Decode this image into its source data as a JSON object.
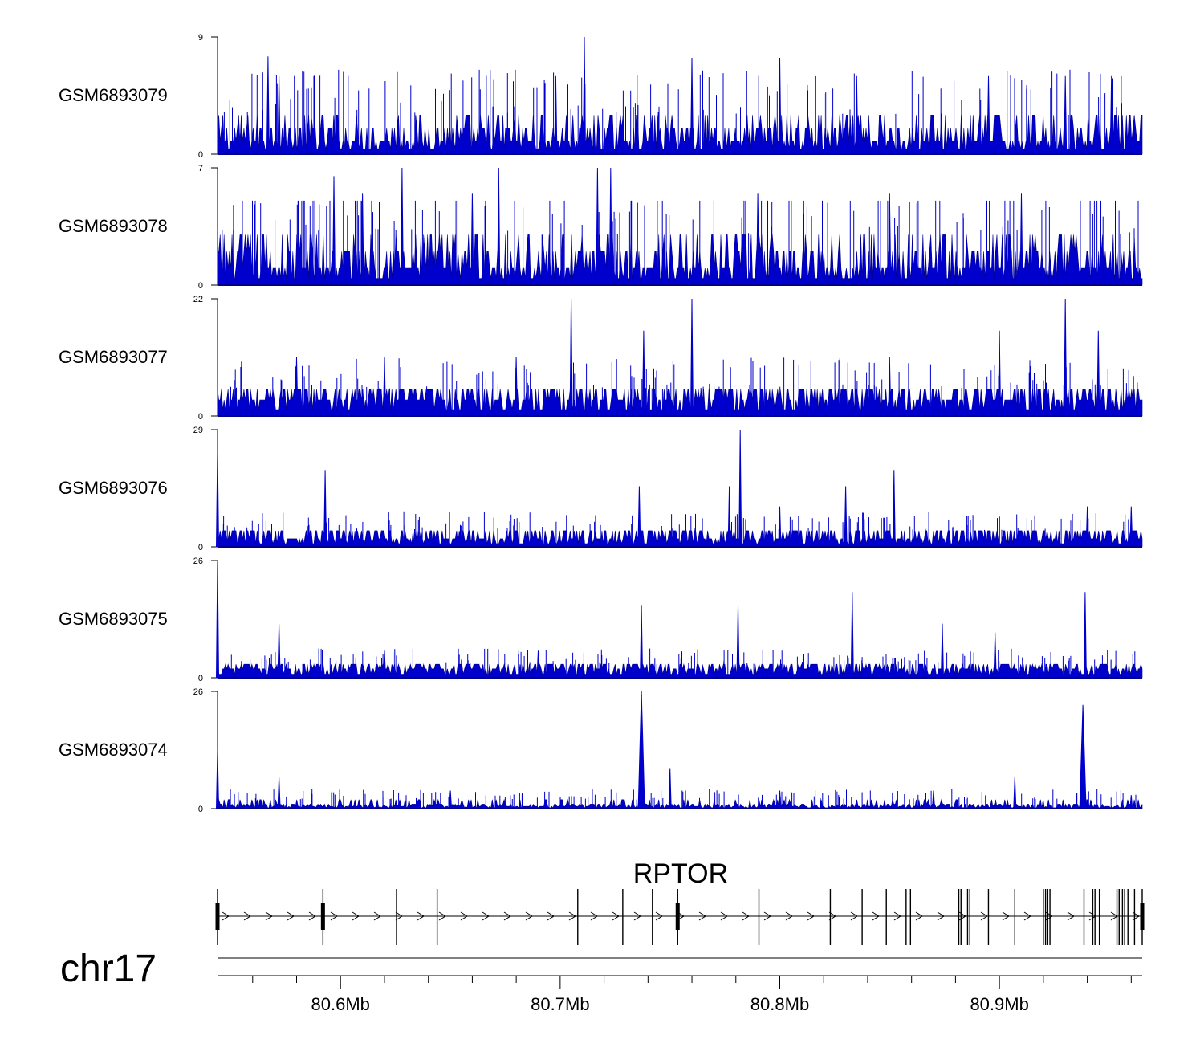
{
  "chart_data": {
    "type": "area",
    "x_axis": {
      "unit": "Mb",
      "range": [
        80.544,
        80.965
      ],
      "major_ticks": [
        80.6,
        80.7,
        80.8,
        80.9
      ],
      "major_labels": [
        "80.6Mb",
        "80.7Mb",
        "80.8Mb",
        "80.9Mb"
      ],
      "minor_ticks": [
        80.56,
        80.58,
        80.62,
        80.64,
        80.66,
        80.68,
        80.72,
        80.74,
        80.76,
        80.78,
        80.82,
        80.84,
        80.86,
        80.88,
        80.92,
        80.94,
        80.96
      ]
    },
    "chromosome": "chr17",
    "tracks": [
      {
        "name": "GSM6893079",
        "ymax": 9,
        "ymin": 0,
        "color": "#0000cd",
        "baseline_levels": [
          1,
          2,
          3
        ],
        "peaks": [
          {
            "x": 80.567,
            "y": 7.5
          },
          {
            "x": 80.572,
            "y": 6
          },
          {
            "x": 80.711,
            "y": 9
          },
          {
            "x": 80.76,
            "y": 7.4
          },
          {
            "x": 80.8,
            "y": 7.4
          },
          {
            "x": 80.698,
            "y": 6
          },
          {
            "x": 80.835,
            "y": 6
          },
          {
            "x": 80.895,
            "y": 6
          },
          {
            "x": 80.93,
            "y": 6
          },
          {
            "x": 80.951,
            "y": 6
          }
        ]
      },
      {
        "name": "GSM6893078",
        "ymax": 7,
        "ymin": 0,
        "color": "#0000cd",
        "baseline_levels": [
          1,
          2,
          3
        ],
        "peaks": [
          {
            "x": 80.597,
            "y": 6.5
          },
          {
            "x": 80.628,
            "y": 7
          },
          {
            "x": 80.672,
            "y": 7
          },
          {
            "x": 80.717,
            "y": 7
          },
          {
            "x": 80.723,
            "y": 7
          },
          {
            "x": 80.61,
            "y": 5.5
          },
          {
            "x": 80.66,
            "y": 5.5
          },
          {
            "x": 80.79,
            "y": 5.5
          },
          {
            "x": 80.85,
            "y": 5.5
          },
          {
            "x": 80.91,
            "y": 5.5
          }
        ]
      },
      {
        "name": "GSM6893077",
        "ymax": 22,
        "ymin": 0,
        "color": "#0000cd",
        "baseline_levels": [
          3,
          5
        ],
        "peaks": [
          {
            "x": 80.705,
            "y": 22
          },
          {
            "x": 80.76,
            "y": 22
          },
          {
            "x": 80.738,
            "y": 16
          },
          {
            "x": 80.93,
            "y": 22
          },
          {
            "x": 80.9,
            "y": 16
          },
          {
            "x": 80.945,
            "y": 16
          },
          {
            "x": 80.62,
            "y": 11
          },
          {
            "x": 80.58,
            "y": 11
          },
          {
            "x": 80.68,
            "y": 11
          },
          {
            "x": 80.85,
            "y": 11
          }
        ]
      },
      {
        "name": "GSM6893076",
        "ymax": 29,
        "ymin": 0,
        "color": "#0000cd",
        "baseline_levels": [
          2,
          4
        ],
        "peaks": [
          {
            "x": 80.544,
            "y": 24
          },
          {
            "x": 80.593,
            "y": 19
          },
          {
            "x": 80.782,
            "y": 29
          },
          {
            "x": 80.852,
            "y": 19
          },
          {
            "x": 80.736,
            "y": 15
          },
          {
            "x": 80.777,
            "y": 15
          },
          {
            "x": 80.83,
            "y": 15
          },
          {
            "x": 80.8,
            "y": 10
          },
          {
            "x": 80.94,
            "y": 10
          },
          {
            "x": 80.96,
            "y": 10
          }
        ]
      },
      {
        "name": "GSM6893075",
        "ymax": 26,
        "ymin": 0,
        "color": "#0000cd",
        "baseline_levels": [
          2,
          3
        ],
        "peaks": [
          {
            "x": 80.544,
            "y": 26
          },
          {
            "x": 80.737,
            "y": 16
          },
          {
            "x": 80.781,
            "y": 16
          },
          {
            "x": 80.833,
            "y": 19
          },
          {
            "x": 80.939,
            "y": 19
          },
          {
            "x": 80.572,
            "y": 12
          },
          {
            "x": 80.874,
            "y": 12
          },
          {
            "x": 80.898,
            "y": 10
          },
          {
            "x": 80.62,
            "y": 6
          },
          {
            "x": 80.69,
            "y": 6
          }
        ]
      },
      {
        "name": "GSM6893074",
        "ymax": 26,
        "ymin": 0,
        "color": "#0000cd",
        "baseline_levels": [
          0.5,
          1,
          2
        ],
        "peaks": [
          {
            "x": 80.544,
            "y": 13
          },
          {
            "x": 80.737,
            "y": 26
          },
          {
            "x": 80.938,
            "y": 23
          },
          {
            "x": 80.75,
            "y": 9
          },
          {
            "x": 80.907,
            "y": 7
          },
          {
            "x": 80.572,
            "y": 7
          },
          {
            "x": 80.65,
            "y": 4
          },
          {
            "x": 80.8,
            "y": 4
          },
          {
            "x": 80.87,
            "y": 4
          },
          {
            "x": 80.96,
            "y": 3
          }
        ]
      }
    ],
    "gene": {
      "name": "RPTOR",
      "strand": "+",
      "start": 80.544,
      "end": 80.965,
      "exons": [
        80.544,
        80.592,
        80.6255,
        80.644,
        80.708,
        80.7285,
        80.742,
        80.7535,
        80.7905,
        80.823,
        80.8375,
        80.8485,
        80.8575,
        80.8595,
        80.8815,
        80.8825,
        80.8855,
        80.8865,
        80.895,
        80.907,
        80.92,
        80.921,
        80.922,
        80.923,
        80.9385,
        80.9425,
        80.9435,
        80.9455,
        80.9535,
        80.9545,
        80.956,
        80.957,
        80.9585,
        80.9615,
        80.965
      ],
      "thick_exons": [
        80.544,
        80.592,
        80.7535,
        80.965
      ]
    }
  }
}
